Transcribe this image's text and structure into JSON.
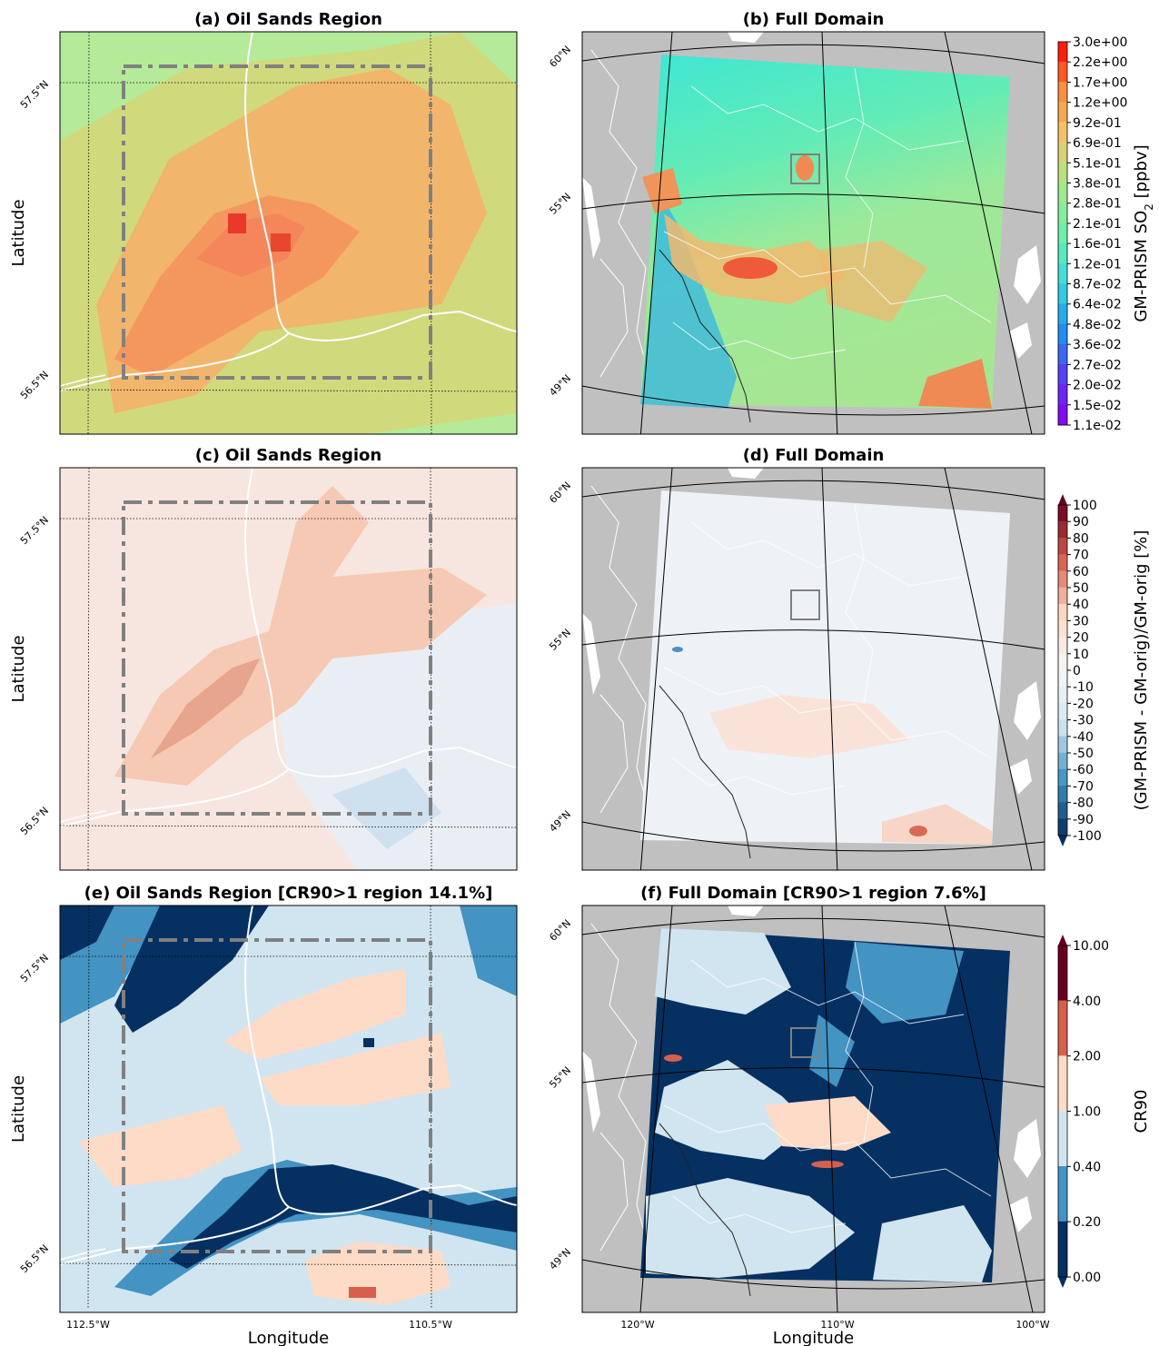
{
  "panels": [
    {
      "title": "(a) Oil Sands Region",
      "ylabel": "Latitude",
      "lat_labels": [
        "57.5°N",
        "56.5°N"
      ]
    },
    {
      "title": "(b)  Full Domain",
      "lat_labels": [
        "60°N",
        "55°N",
        "49°N"
      ]
    },
    {
      "title": "(c) Oil Sands Region",
      "ylabel": "Latitude",
      "lat_labels": [
        "57.5°N",
        "56.5°N"
      ]
    },
    {
      "title": "(d) Full Domain",
      "lat_labels": [
        "60°N",
        "55°N",
        "49°N"
      ]
    },
    {
      "title": "(e) Oil Sands Region [CR90>1 region 14.1%]",
      "ylabel": "Latitude",
      "lat_labels": [
        "57.5°N",
        "56.5°N"
      ],
      "lon_labels": [
        "112.5°W",
        "110.5°W"
      ],
      "xlabel": "Longitude"
    },
    {
      "title": "(f) Full Domain [CR90>1 region 7.6%]",
      "lat_labels": [
        "60°N",
        "55°N",
        "49°N"
      ],
      "lon_labels": [
        "120°W",
        "110°W",
        "100°W"
      ],
      "xlabel": "Longitude"
    }
  ],
  "colorbars": [
    {
      "label_parts": [
        "GM-PRISM SO",
        "2",
        " [ppbv]"
      ],
      "ticks": [
        "3.0e+00",
        "2.2e+00",
        "1.7e+00",
        "1.2e+00",
        "9.2e-01",
        "6.9e-01",
        "5.1e-01",
        "3.8e-01",
        "2.8e-01",
        "2.1e-01",
        "1.6e-01",
        "1.2e-01",
        "8.7e-02",
        "6.4e-02",
        "4.8e-02",
        "3.6e-02",
        "2.7e-02",
        "2.0e-02",
        "1.5e-02",
        "1.1e-02"
      ]
    },
    {
      "label": "(GM-PRISM  - GM-orig)/GM-orig [%]",
      "ticks": [
        "100",
        "90",
        "80",
        "70",
        "60",
        "50",
        "40",
        "30",
        "20",
        "10",
        "0",
        "-10",
        "-20",
        "-30",
        "-40",
        "-50",
        "-60",
        "-70",
        "-80",
        "-90",
        "-100"
      ]
    },
    {
      "label": "CR90",
      "ticks": [
        "10.00",
        "4.00",
        "2.00",
        "1.00",
        "0.40",
        "0.20",
        "0.00"
      ]
    }
  ]
}
